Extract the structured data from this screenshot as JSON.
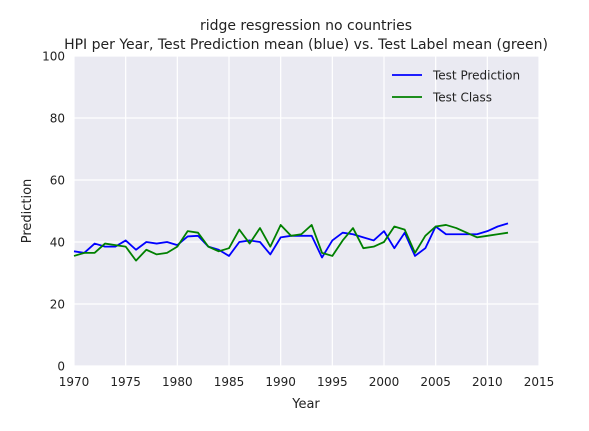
{
  "chart_data": {
    "type": "line",
    "title": "ridge resgression no countries",
    "subtitle": "HPI per Year, Test Prediction mean (blue) vs. Test Label mean (green)",
    "xlabel": "Year",
    "ylabel": "Prediction",
    "xlim": [
      1970,
      2015
    ],
    "ylim": [
      0,
      100
    ],
    "xticks": [
      "1970",
      "1975",
      "1980",
      "1985",
      "1990",
      "1995",
      "2000",
      "2005",
      "2010",
      "2015"
    ],
    "yticks": [
      "0",
      "20",
      "40",
      "60",
      "80",
      "100"
    ],
    "grid": true,
    "legend_position": "top-right",
    "series": [
      {
        "name": "Test Prediction",
        "color": "#0000ff",
        "x": [
          1970,
          1971,
          1972,
          1973,
          1974,
          1975,
          1976,
          1977,
          1978,
          1979,
          1980,
          1981,
          1982,
          1983,
          1984,
          1985,
          1986,
          1987,
          1988,
          1989,
          1990,
          1991,
          1992,
          1993,
          1994,
          1995,
          1996,
          1997,
          1998,
          1999,
          2000,
          2001,
          2002,
          2003,
          2004,
          2005,
          2006,
          2007,
          2008,
          2009,
          2010,
          2011,
          2012
        ],
        "values": [
          37.0,
          36.5,
          39.5,
          38.5,
          38.5,
          40.5,
          37.5,
          40.0,
          39.5,
          40.0,
          39.0,
          41.8,
          42.0,
          38.5,
          37.5,
          35.5,
          40.0,
          40.5,
          40.0,
          36.0,
          41.5,
          42.0,
          42.0,
          42.0,
          35.0,
          40.5,
          43.0,
          42.5,
          41.5,
          40.5,
          43.5,
          38.0,
          43.0,
          35.5,
          38.0,
          45.0,
          42.5,
          42.5,
          42.5,
          42.5,
          43.5,
          45.0,
          46.0
        ]
      },
      {
        "name": "Test Class",
        "color": "#008000",
        "x": [
          1970,
          1971,
          1972,
          1973,
          1974,
          1975,
          1976,
          1977,
          1978,
          1979,
          1980,
          1981,
          1982,
          1983,
          1984,
          1985,
          1986,
          1987,
          1988,
          1989,
          1990,
          1991,
          1992,
          1993,
          1994,
          1995,
          1996,
          1997,
          1998,
          1999,
          2000,
          2001,
          2002,
          2003,
          2004,
          2005,
          2006,
          2007,
          2008,
          2009,
          2010,
          2011,
          2012
        ],
        "values": [
          35.5,
          36.5,
          36.5,
          39.5,
          39.0,
          38.5,
          34.0,
          37.5,
          36.0,
          36.5,
          38.5,
          43.5,
          43.0,
          38.5,
          37.0,
          38.0,
          44.0,
          39.5,
          44.5,
          38.5,
          45.5,
          42.0,
          42.5,
          45.5,
          36.5,
          35.5,
          40.5,
          44.5,
          38.0,
          38.5,
          40.0,
          45.0,
          44.0,
          36.5,
          42.0,
          45.0,
          45.5,
          44.5,
          43.0,
          41.5,
          42.0,
          42.5,
          43.0
        ]
      }
    ]
  }
}
